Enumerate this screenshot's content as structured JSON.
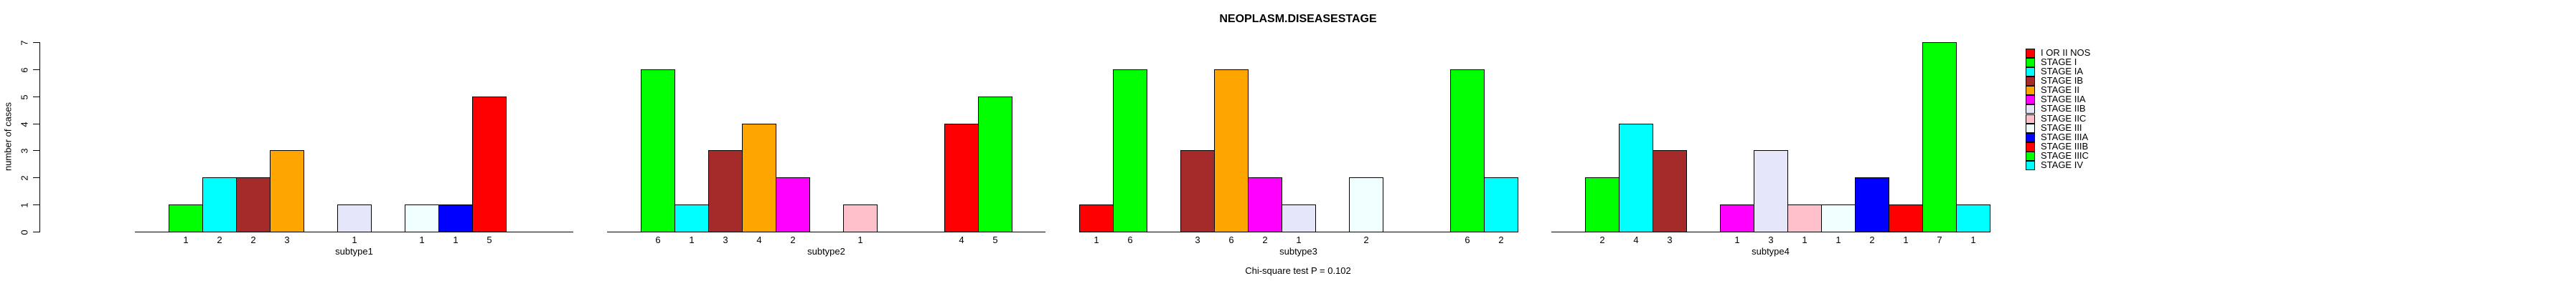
{
  "chart_data": {
    "type": "bar",
    "title": "NEOPLASM.DISEASESTAGE",
    "ylabel": "number of cases",
    "footer": "Chi-square test P = 0.102",
    "ylim": [
      0,
      7
    ],
    "yticks": [
      0,
      1,
      2,
      3,
      4,
      5,
      6,
      7
    ],
    "grid": false,
    "legend_position": "right",
    "stages": [
      {
        "name": "I OR II NOS",
        "color": "#FF0000"
      },
      {
        "name": "STAGE I",
        "color": "#00FF00"
      },
      {
        "name": "STAGE IA",
        "color": "#00FFFF"
      },
      {
        "name": "STAGE IB",
        "color": "#A52A2A"
      },
      {
        "name": "STAGE II",
        "color": "#FFA500"
      },
      {
        "name": "STAGE IIA",
        "color": "#FF00FF"
      },
      {
        "name": "STAGE IIB",
        "color": "#E6E6FA"
      },
      {
        "name": "STAGE IIC",
        "color": "#FFC0CB"
      },
      {
        "name": "STAGE III",
        "color": "#F0FFFF"
      },
      {
        "name": "STAGE IIIA",
        "color": "#0000FF"
      },
      {
        "name": "STAGE IIIB",
        "color": "#FF0000"
      },
      {
        "name": "STAGE IIIC",
        "color": "#00FF00"
      },
      {
        "name": "STAGE IV",
        "color": "#00FFFF"
      }
    ],
    "groups": [
      {
        "label": "subtype1",
        "values": [
          0,
          1,
          2,
          2,
          3,
          0,
          1,
          0,
          1,
          1,
          5,
          0,
          0
        ]
      },
      {
        "label": "subtype2",
        "values": [
          0,
          6,
          1,
          3,
          4,
          2,
          0,
          1,
          0,
          0,
          4,
          5,
          0
        ]
      },
      {
        "label": "subtype3",
        "values": [
          1,
          6,
          0,
          3,
          6,
          2,
          1,
          0,
          2,
          0,
          0,
          6,
          2
        ]
      },
      {
        "label": "subtype4",
        "values": [
          0,
          2,
          4,
          3,
          0,
          1,
          3,
          1,
          1,
          2,
          1,
          7,
          1
        ]
      }
    ]
  }
}
